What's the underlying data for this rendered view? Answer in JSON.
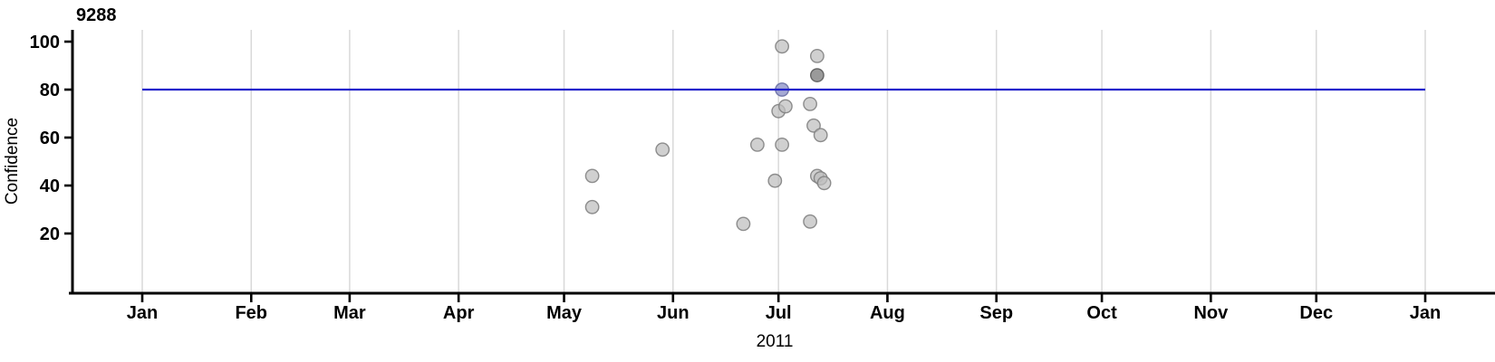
{
  "chart_data": {
    "type": "scatter",
    "title": "9288",
    "xlabel": "2011",
    "ylabel": "Confidence",
    "legend_position": "none",
    "grid": "vertical-month-gridlines-only",
    "x_axis": {
      "unit": "month of year 2011 (day offset from Jan 1)",
      "tick_labels": [
        "Jan",
        "Feb",
        "Mar",
        "Apr",
        "May",
        "Jun",
        "Jul",
        "Aug",
        "Sep",
        "Oct",
        "Nov",
        "Dec",
        "Jan"
      ],
      "tick_days": [
        0,
        31,
        59,
        90,
        120,
        151,
        181,
        212,
        243,
        273,
        304,
        334,
        365
      ],
      "range_days": [
        0,
        365
      ]
    },
    "y_axis": {
      "ticks": [
        20,
        40,
        60,
        80,
        100
      ],
      "ylim": [
        -5,
        105
      ]
    },
    "hline": {
      "y": 80,
      "color": "#2222cc"
    },
    "points": [
      {
        "day": 128,
        "confidence": 44,
        "variant": "normal"
      },
      {
        "day": 128,
        "confidence": 31,
        "variant": "normal"
      },
      {
        "day": 148,
        "confidence": 55,
        "variant": "normal"
      },
      {
        "day": 171,
        "confidence": 24,
        "variant": "normal"
      },
      {
        "day": 175,
        "confidence": 57,
        "variant": "normal"
      },
      {
        "day": 180,
        "confidence": 42,
        "variant": "normal"
      },
      {
        "day": 182,
        "confidence": 98,
        "variant": "normal"
      },
      {
        "day": 182,
        "confidence": 80,
        "variant": "highlight"
      },
      {
        "day": 181,
        "confidence": 71,
        "variant": "normal"
      },
      {
        "day": 183,
        "confidence": 73,
        "variant": "normal"
      },
      {
        "day": 190,
        "confidence": 74,
        "variant": "normal"
      },
      {
        "day": 192,
        "confidence": 94,
        "variant": "normal"
      },
      {
        "day": 192,
        "confidence": 86,
        "variant": "dark"
      },
      {
        "day": 191,
        "confidence": 65,
        "variant": "normal"
      },
      {
        "day": 193,
        "confidence": 61,
        "variant": "normal"
      },
      {
        "day": 182,
        "confidence": 57,
        "variant": "normal"
      },
      {
        "day": 192,
        "confidence": 44,
        "variant": "normal"
      },
      {
        "day": 193,
        "confidence": 43,
        "variant": "normal"
      },
      {
        "day": 194,
        "confidence": 41,
        "variant": "normal"
      },
      {
        "day": 190,
        "confidence": 25,
        "variant": "normal"
      }
    ],
    "colors": {
      "point_fill": "rgba(190,190,190,0.72)",
      "point_stroke": "rgba(130,130,130,0.9)",
      "dark_fill": "rgba(125,125,125,0.78)",
      "dark_stroke": "rgba(90,90,90,0.9)",
      "highlight_fill": "rgba(150,155,205,0.85)",
      "highlight_stroke": "rgba(110,115,165,0.95)",
      "hline": "#2222cc",
      "gridline": "#d9d9d9",
      "axis": "#000000"
    }
  }
}
